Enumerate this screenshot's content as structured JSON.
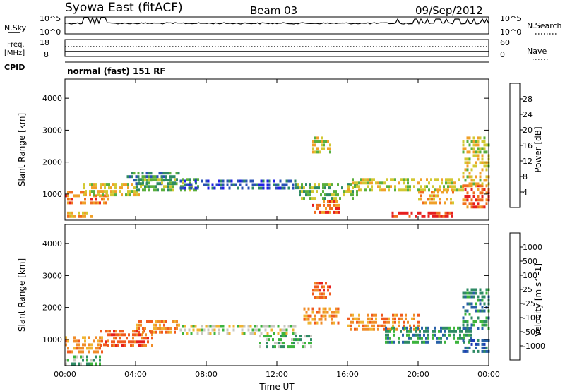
{
  "header": {
    "station": "Syowa East (fitACF)",
    "beam": "Beam 03",
    "date": "09/Sep/2012"
  },
  "status_panels": {
    "nsky_label": "N.Sky",
    "nsearch_label": "N.Search",
    "nsky_ticks": [
      "10^5",
      "10^0"
    ],
    "nsearch_ticks": [
      "10^5",
      "10^0"
    ],
    "freq_label": "Freq.",
    "freq_unit": "[MHz]",
    "freq_ticks": [
      "18",
      "8"
    ],
    "nave_label": "Nave",
    "nave_ticks": [
      "60",
      "0"
    ],
    "cpid_label": "CPID",
    "cpid_value": "normal (fast) 151 RF"
  },
  "chart_data": [
    {
      "type": "heatmap",
      "title": "",
      "quantity": "Power",
      "ylabel": "Slant Range [km]",
      "xlabel": "",
      "ylim": [
        180,
        4600
      ],
      "yticks": [
        1000,
        2000,
        3000,
        4000
      ],
      "xlim": [
        0,
        24
      ],
      "colorbar": {
        "label": "Power [dB]",
        "ticks": [
          "4",
          "8",
          "12",
          "16",
          "20",
          "24",
          "28"
        ],
        "colors": [
          "#1e1ee6",
          "#2850b4",
          "#2e8a64",
          "#5aaf3c",
          "#d2c832",
          "#f0a028",
          "#f06e1e",
          "#e61e1e"
        ]
      },
      "bands": [
        {
          "t0": 0.0,
          "t1": 2.5,
          "r0": 700,
          "r1": 1100,
          "level": 6
        },
        {
          "t0": 0.0,
          "t1": 1.5,
          "r0": 250,
          "r1": 450,
          "level": 5
        },
        {
          "t0": 1.0,
          "t1": 4.5,
          "r0": 1000,
          "r1": 1350,
          "level": 4
        },
        {
          "t0": 3.5,
          "t1": 6.5,
          "r0": 1300,
          "r1": 1700,
          "level": 2
        },
        {
          "t0": 4.0,
          "t1": 7.5,
          "r0": 1100,
          "r1": 1500,
          "level": 3
        },
        {
          "t0": 6.5,
          "t1": 13.0,
          "r0": 1150,
          "r1": 1450,
          "level": 1
        },
        {
          "t0": 13.0,
          "t1": 16.5,
          "r0": 900,
          "r1": 1350,
          "level": 3
        },
        {
          "t0": 14.0,
          "t1": 15.5,
          "r0": 400,
          "r1": 800,
          "level": 6
        },
        {
          "t0": 14.0,
          "t1": 15.0,
          "r0": 2300,
          "r1": 2800,
          "level": 4
        },
        {
          "t0": 16.0,
          "t1": 22.5,
          "r0": 1150,
          "r1": 1500,
          "level": 4
        },
        {
          "t0": 18.5,
          "t1": 22.0,
          "r0": 250,
          "r1": 450,
          "level": 7
        },
        {
          "t0": 20.0,
          "t1": 22.0,
          "r0": 700,
          "r1": 1100,
          "level": 5
        },
        {
          "t0": 22.5,
          "t1": 24.0,
          "r0": 600,
          "r1": 1300,
          "level": 6
        },
        {
          "t0": 22.5,
          "t1": 24.0,
          "r0": 1300,
          "r1": 2800,
          "level": 4
        }
      ]
    },
    {
      "type": "heatmap",
      "title": "",
      "quantity": "Velocity",
      "ylabel": "Slant Range [km]",
      "xlabel": "Time UT",
      "ylim": [
        180,
        4600
      ],
      "yticks": [
        1000,
        2000,
        3000,
        4000
      ],
      "xlim": [
        0,
        24
      ],
      "xticks": [
        "00:00",
        "04:00",
        "08:00",
        "12:00",
        "16:00",
        "20:00",
        "00:00"
      ],
      "colorbar": {
        "label": "Velocity [m s^-1]",
        "ticks": [
          "-1000",
          "-500",
          "-100",
          "-25",
          "25",
          "100",
          "500",
          "1000"
        ],
        "colors": [
          "#e61e1e",
          "#f05a1e",
          "#f08c28",
          "#f0b432",
          "#c8c8c0",
          "#3cb43c",
          "#2e8a64",
          "#2860a8",
          "#1e3cb4"
        ]
      },
      "bands": [
        {
          "t0": 0.0,
          "t1": 2.5,
          "r0": 600,
          "r1": 1100,
          "level": 2
        },
        {
          "t0": 0.0,
          "t1": 2.0,
          "r0": 250,
          "r1": 500,
          "level": 5
        },
        {
          "t0": 2.0,
          "t1": 5.0,
          "r0": 800,
          "r1": 1300,
          "level": 1
        },
        {
          "t0": 4.0,
          "t1": 6.5,
          "r0": 1200,
          "r1": 1600,
          "level": 2
        },
        {
          "t0": 6.5,
          "t1": 13.0,
          "r0": 1150,
          "r1": 1450,
          "level": 4
        },
        {
          "t0": 11.0,
          "t1": 14.0,
          "r0": 800,
          "r1": 1150,
          "level": 5
        },
        {
          "t0": 13.5,
          "t1": 15.5,
          "r0": 1500,
          "r1": 2000,
          "level": 2
        },
        {
          "t0": 14.0,
          "t1": 15.0,
          "r0": 2300,
          "r1": 2800,
          "level": 1
        },
        {
          "t0": 16.0,
          "t1": 20.0,
          "r0": 1300,
          "r1": 1800,
          "level": 2
        },
        {
          "t0": 18.0,
          "t1": 23.0,
          "r0": 900,
          "r1": 1400,
          "level": 6
        },
        {
          "t0": 22.5,
          "t1": 24.0,
          "r0": 600,
          "r1": 1000,
          "level": 7
        },
        {
          "t0": 22.5,
          "t1": 24.0,
          "r0": 1300,
          "r1": 2600,
          "level": 6
        }
      ]
    }
  ]
}
